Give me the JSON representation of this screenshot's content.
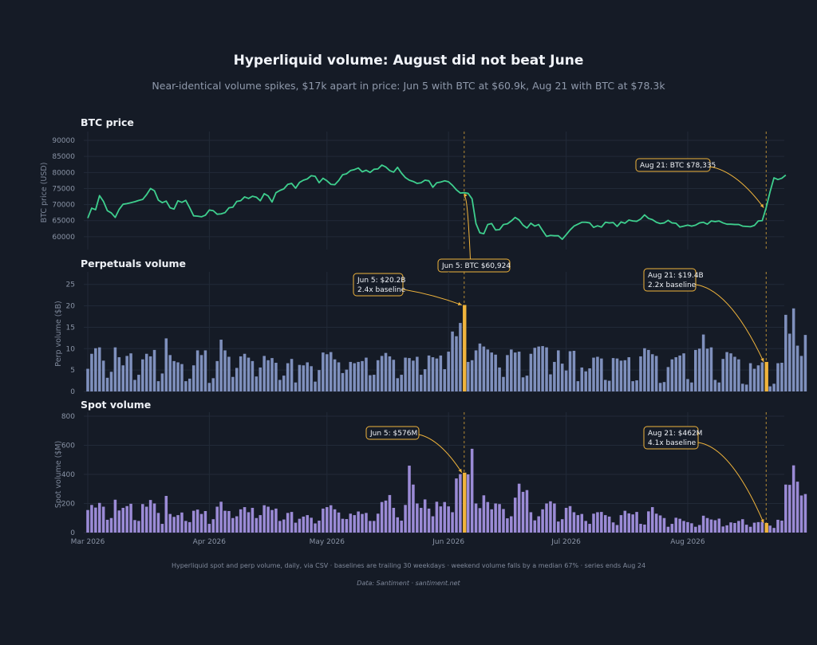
{
  "header": {
    "title": "Hyperliquid volume: August did not beat June",
    "subtitle": "Near-identical volume spikes, $17k apart in price: Jun 5 with BTC at $60.9k, Aug 21 with BTC at $78.3k"
  },
  "footer": {
    "note": "Hyperliquid spot and perp volume, daily, via CSV · baselines are trailing 30 weekdays · weekend volume falls by a median 67% · series ends Aug 24",
    "source": "Data: Santiment · santiment.net"
  },
  "colors": {
    "background": "#151b26",
    "price_line": "#3ecf8e",
    "perp_bar": "#7f90bd",
    "spot_bar": "#9b8bd6",
    "highlight": "#f0b43c",
    "grid": "#222a38"
  },
  "chart_data": [
    {
      "type": "line",
      "title": "BTC price",
      "xlabel": "",
      "ylabel": "BTC price (USD)",
      "ylim": [
        56000,
        91500
      ],
      "yticks": [
        60000,
        65000,
        70000,
        75000,
        80000,
        85000,
        90000
      ],
      "grid": true,
      "series": [
        {
          "x_start": "2026-03-01",
          "x_end": "2026-08-24",
          "values": [
            65800,
            68900,
            68400,
            72800,
            71000,
            68100,
            67400,
            66000,
            68500,
            70100,
            70300,
            70600,
            70900,
            71300,
            71600,
            73100,
            75000,
            74300,
            71400,
            70600,
            71100,
            69000,
            68600,
            71200,
            70700,
            71300,
            69000,
            66500,
            66400,
            66200,
            66700,
            68300,
            68100,
            67000,
            67100,
            67500,
            69000,
            69200,
            71000,
            71200,
            72400,
            71900,
            72600,
            72300,
            71200,
            73400,
            72700,
            70800,
            73700,
            74400,
            74900,
            76300,
            76600,
            75100,
            76900,
            77600,
            78000,
            79000,
            78800,
            76800,
            78200,
            77400,
            76300,
            76200,
            77500,
            79300,
            79600,
            80600,
            80900,
            81400,
            80200,
            80700,
            80000,
            81000,
            81100,
            82300,
            81700,
            80600,
            80100,
            81600,
            79800,
            78400,
            77600,
            77200,
            76600,
            76800,
            77600,
            77400,
            75400,
            76800,
            77000,
            77400,
            77100,
            76000,
            74600,
            73600,
            73700,
            73500,
            71800,
            64100,
            61200,
            60924,
            63800,
            64100,
            62100,
            62200,
            63800,
            64000,
            64900,
            66000,
            65200,
            63600,
            62700,
            64200,
            63300,
            63800,
            61900,
            60100,
            60400,
            60300,
            60300,
            59200,
            60600,
            62100,
            63300,
            63900,
            64500,
            64500,
            64300,
            62900,
            63400,
            63000,
            64500,
            64300,
            64400,
            63200,
            64600,
            64200,
            65200,
            64900,
            64800,
            65500,
            66800,
            65700,
            65300,
            64500,
            64100,
            64300,
            65100,
            64300,
            64200,
            63000,
            63300,
            63600,
            63300,
            63600,
            64300,
            64500,
            63900,
            64900,
            64700,
            64900,
            64300,
            63900,
            63900,
            63800,
            63800,
            63300,
            63200,
            63100,
            63500,
            64900,
            65000,
            69000,
            74000,
            78335,
            77800,
            78200,
            79200
          ]
        }
      ],
      "annotations": [
        {
          "date": "2026-06-05",
          "text": "Jun 5: BTC $60,924"
        },
        {
          "date": "2026-08-21",
          "text": "Aug 21: BTC $78,335"
        }
      ]
    },
    {
      "type": "bar",
      "title": "Perpetuals volume",
      "xlabel": "",
      "ylabel": "Perp volume ($B)",
      "ylim": [
        0,
        27
      ],
      "yticks": [
        0,
        5,
        10,
        15,
        20,
        25
      ],
      "grid": true,
      "series": [
        {
          "x_start": "2026-03-01",
          "x_end": "2026-08-24",
          "values": [
            5.3,
            8.8,
            10.1,
            10.3,
            7.2,
            3.2,
            4.6,
            10.3,
            8.0,
            6.1,
            8.3,
            8.9,
            2.7,
            3.9,
            7.5,
            8.8,
            8.2,
            9.7,
            2.4,
            4.2,
            12.4,
            8.5,
            7.1,
            6.8,
            6.4,
            2.4,
            3.0,
            6.1,
            9.6,
            8.5,
            9.6,
            2.0,
            3.1,
            7.1,
            12.1,
            9.6,
            8.1,
            3.4,
            5.5,
            8.2,
            8.8,
            7.9,
            7.1,
            3.5,
            5.6,
            8.3,
            7.3,
            7.8,
            6.7,
            2.7,
            3.7,
            6.6,
            7.6,
            2.1,
            6.2,
            6.1,
            6.8,
            5.9,
            2.3,
            5.0,
            9.1,
            8.7,
            9.2,
            7.5,
            6.8,
            4.3,
            5.1,
            6.9,
            6.6,
            6.9,
            7.1,
            7.9,
            3.8,
            3.9,
            7.3,
            8.3,
            9.0,
            8.2,
            7.4,
            3.1,
            3.9,
            7.9,
            7.8,
            7.2,
            8.1,
            3.9,
            5.2,
            8.4,
            8.0,
            7.7,
            8.4,
            5.2,
            9.3,
            14.0,
            12.9,
            16.0,
            20.2,
            6.9,
            7.3,
            9.6,
            11.2,
            10.5,
            9.8,
            9.1,
            8.6,
            5.6,
            3.4,
            8.5,
            9.8,
            9.1,
            9.3,
            3.3,
            3.7,
            8.8,
            10.2,
            10.5,
            10.6,
            10.3,
            4.0,
            6.9,
            9.6,
            6.5,
            4.9,
            9.4,
            9.5,
            2.4,
            5.6,
            4.7,
            5.4,
            7.9,
            8.1,
            7.7,
            2.7,
            2.5,
            7.8,
            7.7,
            7.2,
            7.3,
            8.0,
            2.4,
            2.6,
            8.2,
            10.1,
            9.7,
            8.7,
            8.3,
            2.0,
            2.2,
            5.7,
            7.5,
            8.0,
            8.4,
            8.9,
            2.9,
            2.1,
            9.7,
            10.0,
            13.3,
            10.0,
            10.3,
            2.7,
            2.1,
            7.6,
            9.2,
            8.9,
            8.1,
            7.5,
            1.8,
            1.6,
            6.6,
            5.3,
            6.1,
            6.8,
            6.9,
            1.2,
            1.8,
            6.6,
            6.7,
            17.9,
            13.5,
            19.4,
            10.7,
            8.3,
            13.2
          ]
        }
      ],
      "annotations": [
        {
          "date": "2026-06-05",
          "text": "Jun 5: $20.2B",
          "text2": "2.4x baseline"
        },
        {
          "date": "2026-08-21",
          "text": "Aug 21: $19.4B",
          "text2": "2.2x baseline"
        }
      ]
    },
    {
      "type": "bar",
      "title": "Spot volume",
      "xlabel": "",
      "ylabel": "Spot volume ($M)",
      "ylim": [
        0,
        800
      ],
      "yticks": [
        0,
        200,
        400,
        600,
        800
      ],
      "xticks": [
        "Mar 2026",
        "Apr 2026",
        "May 2026",
        "Jun 2026",
        "Jul 2026",
        "Aug 2026"
      ],
      "grid": true,
      "series": [
        {
          "x_start": "2026-03-01",
          "x_end": "2026-08-24",
          "values": [
            155,
            190,
            172,
            204,
            178,
            88,
            100,
            226,
            152,
            170,
            182,
            198,
            86,
            80,
            196,
            178,
            224,
            200,
            135,
            60,
            252,
            128,
            108,
            120,
            138,
            80,
            72,
            150,
            158,
            128,
            148,
            60,
            92,
            178,
            212,
            150,
            148,
            100,
            112,
            160,
            175,
            140,
            170,
            100,
            120,
            188,
            178,
            155,
            165,
            80,
            90,
            135,
            142,
            68,
            95,
            110,
            120,
            102,
            63,
            82,
            165,
            175,
            188,
            160,
            138,
            95,
            93,
            130,
            120,
            145,
            128,
            135,
            80,
            80,
            130,
            210,
            220,
            258,
            170,
            105,
            82,
            190,
            460,
            330,
            200,
            170,
            228,
            165,
            112,
            212,
            180,
            210,
            180,
            140,
            372,
            402,
            412,
            400,
            576,
            200,
            168,
            256,
            210,
            160,
            200,
            196,
            162,
            98,
            112,
            240,
            336,
            280,
            292,
            140,
            84,
            112,
            160,
            200,
            215,
            200,
            76,
            92,
            170,
            182,
            140,
            120,
            128,
            80,
            60,
            130,
            140,
            142,
            120,
            110,
            70,
            52,
            120,
            150,
            132,
            125,
            142,
            60,
            55,
            146,
            175,
            130,
            118,
            100,
            40,
            60,
            102,
            95,
            80,
            72,
            64,
            40,
            52,
            116,
            100,
            90,
            85,
            96,
            42,
            50,
            70,
            66,
            80,
            92,
            54,
            40,
            68,
            72,
            74,
            66,
            48,
            32,
            88,
            82,
            330,
            328,
            462,
            350,
            255,
            265
          ]
        }
      ],
      "annotations": [
        {
          "date": "2026-06-05",
          "text": "Jun 5: $576M"
        },
        {
          "date": "2026-08-21",
          "text": "Aug 21: $462M",
          "text2": "4.1x baseline"
        }
      ]
    }
  ]
}
